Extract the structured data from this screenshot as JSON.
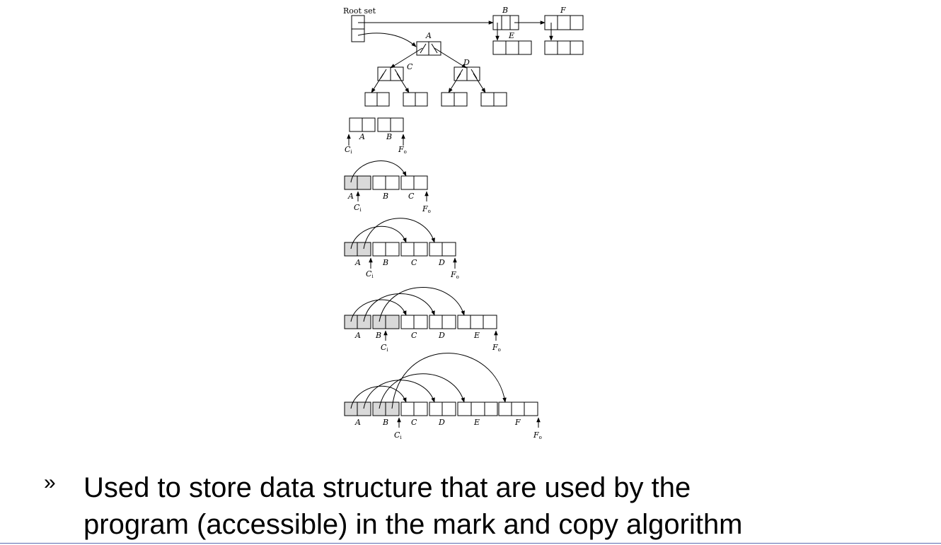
{
  "diagram": {
    "root_label": "Root set",
    "nodes": {
      "A": "A",
      "B": "B",
      "C": "C",
      "D": "D",
      "E": "E",
      "F": "F"
    },
    "scan_pointer": "C",
    "scan_sub": "i",
    "free_pointer": "F",
    "free_sub": "o"
  },
  "bullet": {
    "mark": "»",
    "line1": "Used to store data structure that are used by the",
    "line2": "program (accessible) in the mark and copy algorithm"
  }
}
